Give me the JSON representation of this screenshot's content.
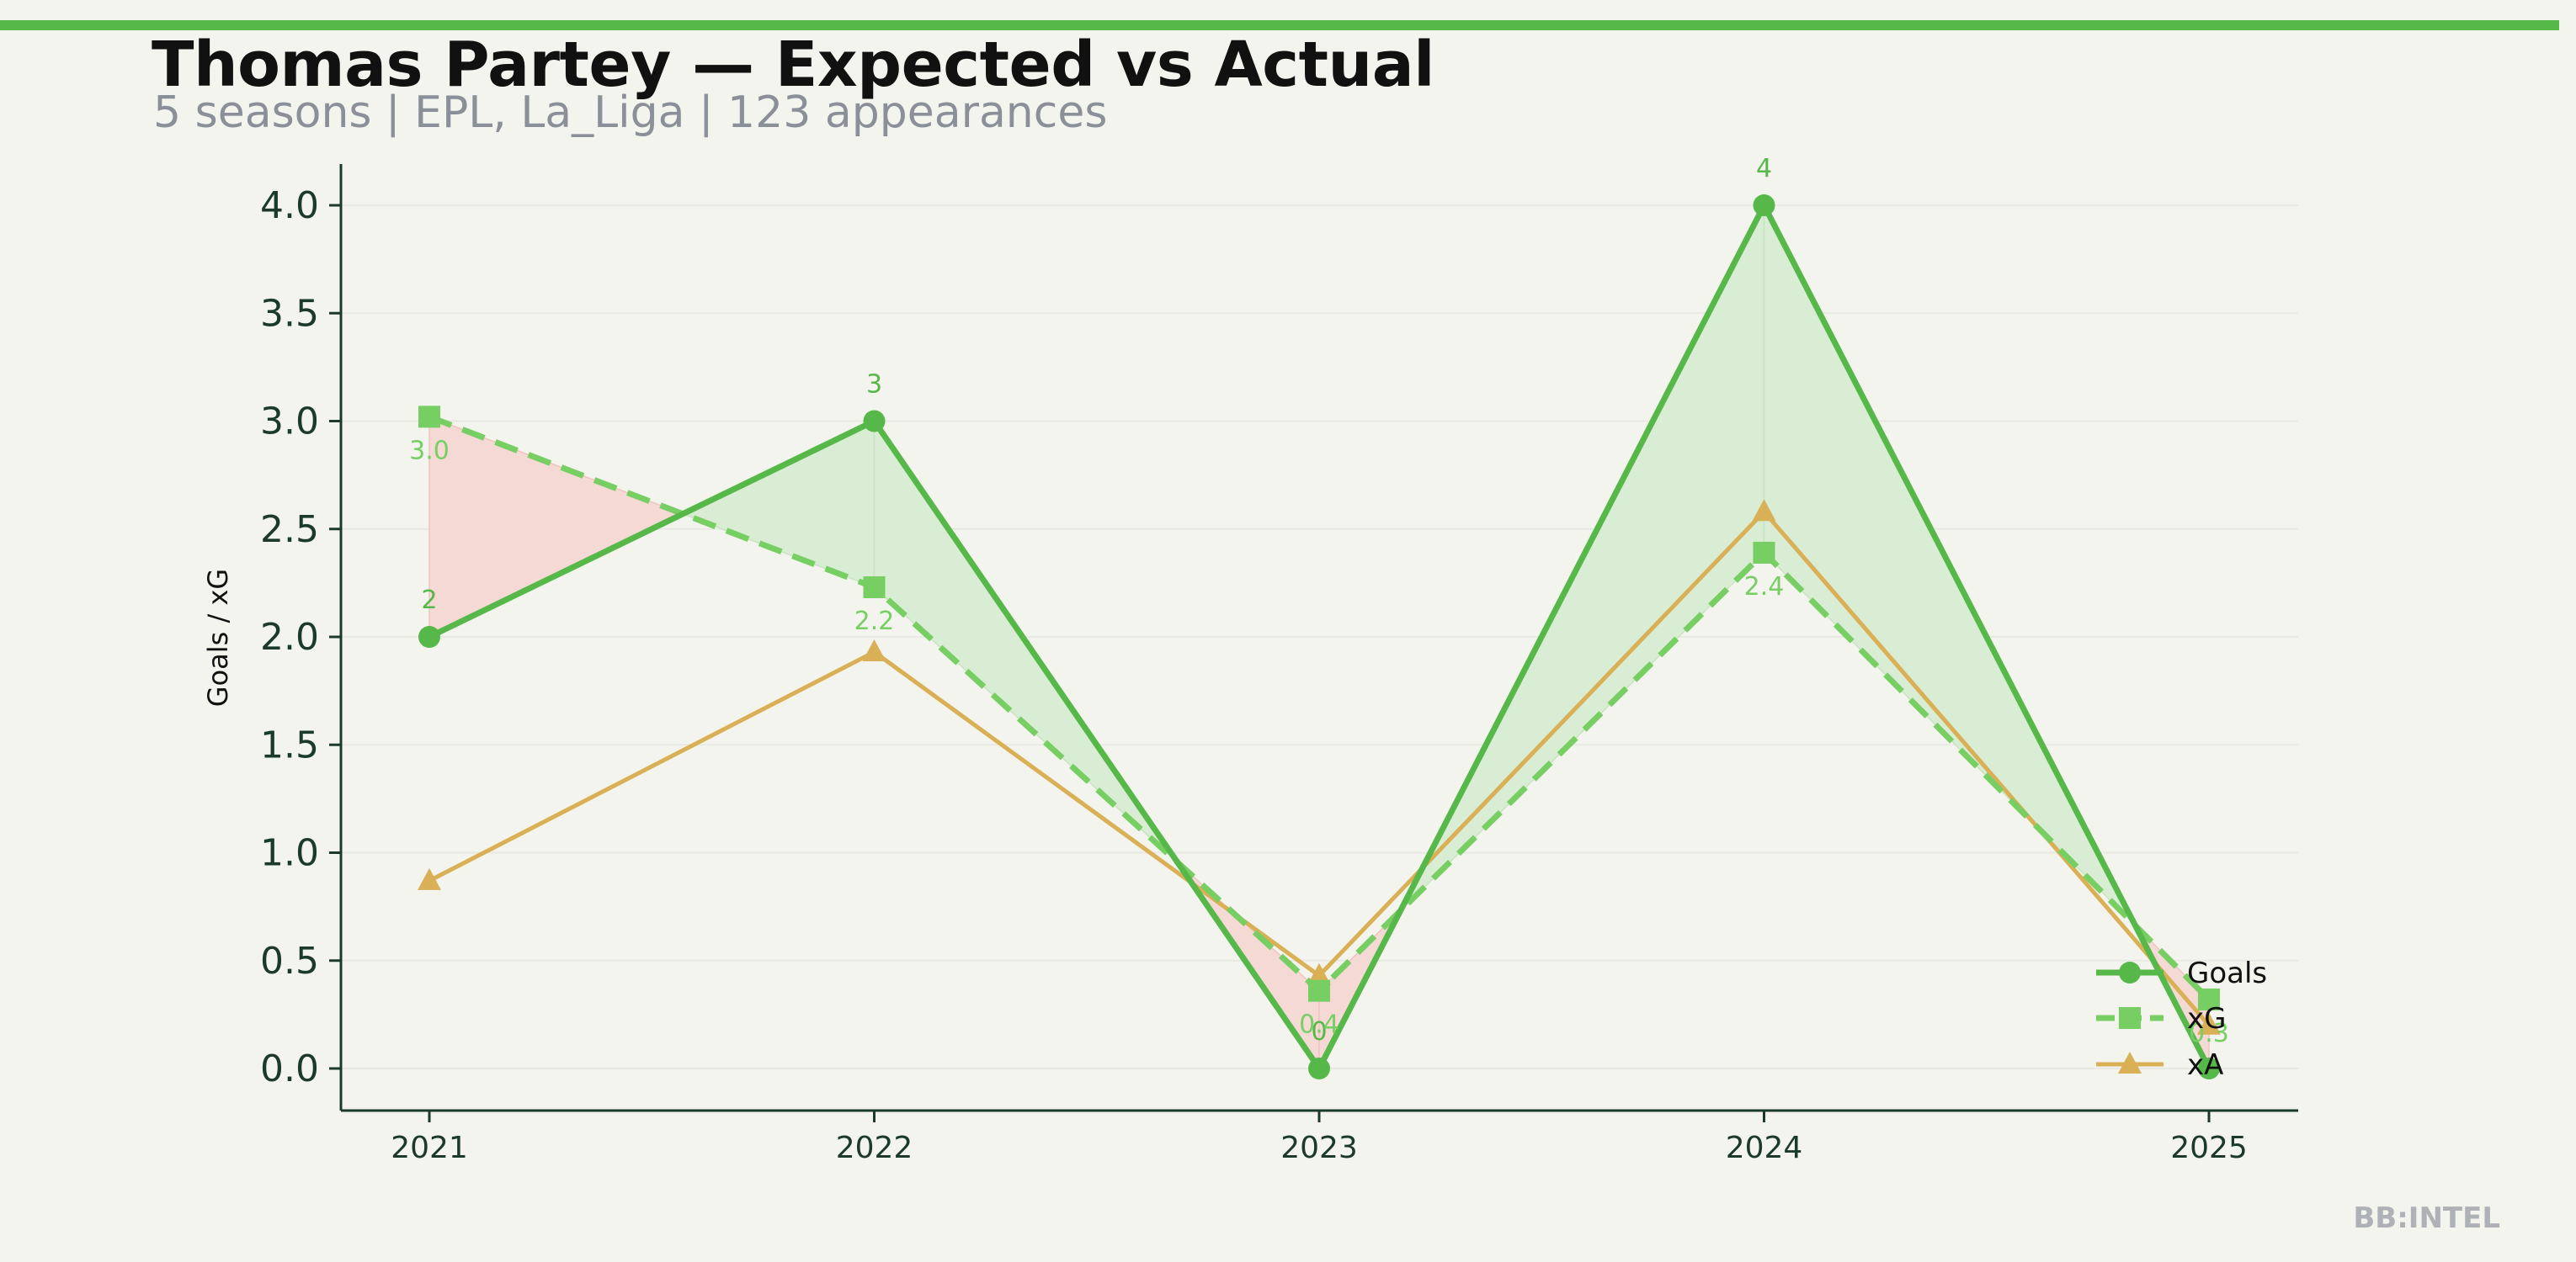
{
  "title": "Thomas Partey — Expected vs Actual",
  "subtitle": "5 seasons | EPL, La_Liga | 123 appearances",
  "watermark": "BB:INTEL",
  "colors": {
    "background": "#f4f4ef",
    "accent_bar": "#57b84a",
    "goals": "#57b84a",
    "xg": "#77cf63",
    "xa": "#d9b055",
    "over_fill": "#d9ecd4",
    "under_fill": "#f5d9d5",
    "axis": "#1b3a2a"
  },
  "chart_data": {
    "type": "line",
    "x": [
      "2021",
      "2022",
      "2023",
      "2024",
      "2025"
    ],
    "ylabel": "Goals / xG",
    "xlabel": "",
    "ylim": [
      -0.2,
      4.2
    ],
    "yticks": [
      0.0,
      0.5,
      1.0,
      1.5,
      2.0,
      2.5,
      3.0,
      3.5,
      4.0
    ],
    "grid": "horizontal",
    "legend_position": "bottom-right",
    "series": [
      {
        "name": "Goals",
        "values": [
          2,
          3,
          0,
          4,
          0
        ],
        "labels": [
          "2",
          "3",
          "0",
          "4",
          ""
        ],
        "marker": "circle",
        "style": "solid",
        "color": "#57b84a"
      },
      {
        "name": "xG",
        "values": [
          3.02,
          2.23,
          0.36,
          2.39,
          0.32
        ],
        "labels": [
          "3.0",
          "2.2",
          "0.4",
          "2.4",
          "0.3"
        ],
        "marker": "square",
        "style": "dashed",
        "color": "#77cf63"
      },
      {
        "name": "xA",
        "values": [
          0.87,
          1.93,
          0.43,
          2.58,
          0.2
        ],
        "labels": [],
        "marker": "triangle",
        "style": "solid",
        "color": "#d9b055"
      }
    ]
  }
}
